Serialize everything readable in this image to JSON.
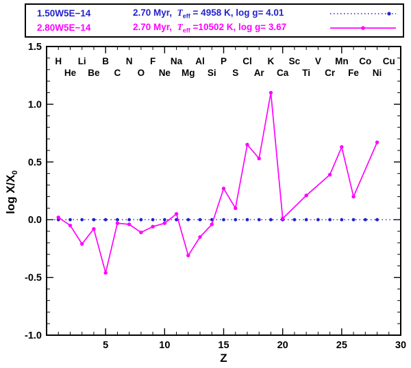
{
  "colors": {
    "blue": "#2222cc",
    "magenta": "#ff00ff",
    "frame": "#000000"
  },
  "legend": {
    "entries": [
      {
        "id": "1.50W5E−14",
        "prefix": "2.70 Myr,  ",
        "tsym": "T",
        "tsub": "eff",
        "suffix": " = 4958 K, log g= 4.01",
        "line": "dotted"
      },
      {
        "id": "2.80W5E−14",
        "prefix": "2.70 Myr,  ",
        "tsym": "T",
        "tsub": "eff",
        "suffix": " =10502 K, log g= 3.67",
        "line": "solid"
      }
    ]
  },
  "axes": {
    "xlabel": "Z",
    "ylabel_main": "log X/X",
    "ylabel_sub": "0"
  },
  "chart_data": {
    "type": "line",
    "title": "",
    "xlabel": "Z",
    "ylabel": "log X/X_0",
    "xlim": [
      0,
      30
    ],
    "ylim": [
      -1.0,
      1.5
    ],
    "grid": false,
    "legend_position": "top",
    "x_major_ticks": [
      5,
      10,
      15,
      20,
      25,
      30
    ],
    "y_major_ticks": [
      -1.0,
      -0.5,
      0.0,
      0.5,
      1.0,
      1.5
    ],
    "x_tick_labels": [
      "5",
      "10",
      "15",
      "20",
      "25",
      "30"
    ],
    "y_tick_labels": [
      "-1.0",
      "-0.5",
      "0.0",
      "0.5",
      "1.0",
      "1.5"
    ],
    "elements": [
      {
        "z": 1,
        "symbol": "H"
      },
      {
        "z": 2,
        "symbol": "He"
      },
      {
        "z": 3,
        "symbol": "Li"
      },
      {
        "z": 4,
        "symbol": "Be"
      },
      {
        "z": 5,
        "symbol": "B"
      },
      {
        "z": 6,
        "symbol": "C"
      },
      {
        "z": 7,
        "symbol": "N"
      },
      {
        "z": 8,
        "symbol": "O"
      },
      {
        "z": 9,
        "symbol": "F"
      },
      {
        "z": 10,
        "symbol": "Ne"
      },
      {
        "z": 11,
        "symbol": "Na"
      },
      {
        "z": 12,
        "symbol": "Mg"
      },
      {
        "z": 13,
        "symbol": "Al"
      },
      {
        "z": 14,
        "symbol": "Si"
      },
      {
        "z": 15,
        "symbol": "P"
      },
      {
        "z": 16,
        "symbol": "S"
      },
      {
        "z": 17,
        "symbol": "Cl"
      },
      {
        "z": 18,
        "symbol": "Ar"
      },
      {
        "z": 19,
        "symbol": "K"
      },
      {
        "z": 20,
        "symbol": "Ca"
      },
      {
        "z": 21,
        "symbol": "Sc"
      },
      {
        "z": 22,
        "symbol": "Ti"
      },
      {
        "z": 23,
        "symbol": "V"
      },
      {
        "z": 24,
        "symbol": "Cr"
      },
      {
        "z": 25,
        "symbol": "Mn"
      },
      {
        "z": 26,
        "symbol": "Fe"
      },
      {
        "z": 27,
        "symbol": "Co"
      },
      {
        "z": 28,
        "symbol": "Ni"
      },
      {
        "z": 29,
        "symbol": "Cu"
      }
    ],
    "series": [
      {
        "name": "1.50W5E-14",
        "age": "2.70 Myr",
        "teff": "4958 K",
        "logg": "4.01",
        "color": "#2222cc",
        "line": "dotted",
        "value": 0.0,
        "line_span": [
          0,
          30
        ],
        "z_markers": [
          1,
          2,
          3,
          4,
          5,
          6,
          7,
          8,
          9,
          10,
          11,
          12,
          13,
          14,
          15,
          16,
          17,
          18,
          19,
          20,
          21,
          22,
          23,
          24,
          25,
          26,
          27,
          28
        ]
      },
      {
        "name": "2.80W5E-14",
        "age": "2.70 Myr",
        "teff": "10502 K",
        "logg": "3.67",
        "color": "#ff00ff",
        "line": "solid",
        "points": [
          {
            "z": 1,
            "v": 0.02
          },
          {
            "z": 2,
            "v": -0.05
          },
          {
            "z": 3,
            "v": -0.21
          },
          {
            "z": 4,
            "v": -0.08
          },
          {
            "z": 5,
            "v": -0.46
          },
          {
            "z": 6,
            "v": -0.03
          },
          {
            "z": 7,
            "v": -0.04
          },
          {
            "z": 8,
            "v": -0.11
          },
          {
            "z": 9,
            "v": -0.06
          },
          {
            "z": 10,
            "v": -0.03
          },
          {
            "z": 11,
            "v": 0.05
          },
          {
            "z": 12,
            "v": -0.31
          },
          {
            "z": 13,
            "v": -0.15
          },
          {
            "z": 14,
            "v": -0.04
          },
          {
            "z": 15,
            "v": 0.27
          },
          {
            "z": 16,
            "v": 0.1
          },
          {
            "z": 17,
            "v": 0.65
          },
          {
            "z": 18,
            "v": 0.53
          },
          {
            "z": 19,
            "v": 1.1
          },
          {
            "z": 20,
            "v": 0.01
          },
          {
            "z": 22,
            "v": 0.21
          },
          {
            "z": 24,
            "v": 0.39
          },
          {
            "z": 25,
            "v": 0.63
          },
          {
            "z": 26,
            "v": 0.2
          },
          {
            "z": 28,
            "v": 0.67
          }
        ]
      }
    ]
  }
}
